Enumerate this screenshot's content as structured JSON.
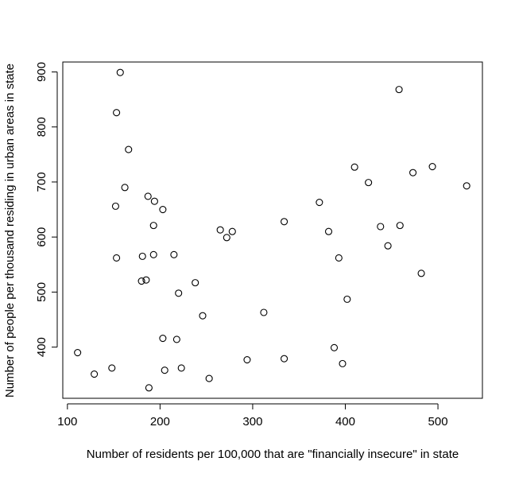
{
  "chart_data": {
    "type": "scatter",
    "title": "",
    "xlabel": "Number of residents per 100,000 that are \"financially insecure\" in state",
    "ylabel": "Number of people per thousand residing in urban areas in state",
    "xlim": [
      95,
      548
    ],
    "ylim": [
      307,
      918
    ],
    "xticks": [
      100,
      200,
      300,
      400,
      500
    ],
    "yticks": [
      400,
      500,
      600,
      700,
      800,
      900
    ],
    "grid": false,
    "legend": "none",
    "points": [
      {
        "x": 111,
        "y": 390
      },
      {
        "x": 129,
        "y": 351
      },
      {
        "x": 148,
        "y": 362
      },
      {
        "x": 152,
        "y": 656
      },
      {
        "x": 153,
        "y": 826
      },
      {
        "x": 153,
        "y": 562
      },
      {
        "x": 157,
        "y": 899
      },
      {
        "x": 162,
        "y": 690
      },
      {
        "x": 166,
        "y": 759
      },
      {
        "x": 180,
        "y": 520
      },
      {
        "x": 181,
        "y": 565
      },
      {
        "x": 185,
        "y": 522
      },
      {
        "x": 187,
        "y": 674
      },
      {
        "x": 188,
        "y": 326
      },
      {
        "x": 193,
        "y": 568
      },
      {
        "x": 193,
        "y": 621
      },
      {
        "x": 194,
        "y": 665
      },
      {
        "x": 203,
        "y": 416
      },
      {
        "x": 203,
        "y": 650
      },
      {
        "x": 205,
        "y": 358
      },
      {
        "x": 215,
        "y": 568
      },
      {
        "x": 218,
        "y": 414
      },
      {
        "x": 220,
        "y": 498
      },
      {
        "x": 223,
        "y": 362
      },
      {
        "x": 238,
        "y": 517
      },
      {
        "x": 246,
        "y": 457
      },
      {
        "x": 253,
        "y": 343
      },
      {
        "x": 265,
        "y": 613
      },
      {
        "x": 272,
        "y": 599
      },
      {
        "x": 278,
        "y": 610
      },
      {
        "x": 294,
        "y": 377
      },
      {
        "x": 312,
        "y": 463
      },
      {
        "x": 334,
        "y": 628
      },
      {
        "x": 334,
        "y": 379
      },
      {
        "x": 372,
        "y": 663
      },
      {
        "x": 382,
        "y": 610
      },
      {
        "x": 388,
        "y": 399
      },
      {
        "x": 393,
        "y": 562
      },
      {
        "x": 397,
        "y": 370
      },
      {
        "x": 402,
        "y": 487
      },
      {
        "x": 410,
        "y": 727
      },
      {
        "x": 425,
        "y": 699
      },
      {
        "x": 438,
        "y": 619
      },
      {
        "x": 446,
        "y": 584
      },
      {
        "x": 459,
        "y": 621
      },
      {
        "x": 458,
        "y": 868
      },
      {
        "x": 473,
        "y": 717
      },
      {
        "x": 482,
        "y": 534
      },
      {
        "x": 494,
        "y": 728
      },
      {
        "x": 531,
        "y": 693
      }
    ]
  }
}
